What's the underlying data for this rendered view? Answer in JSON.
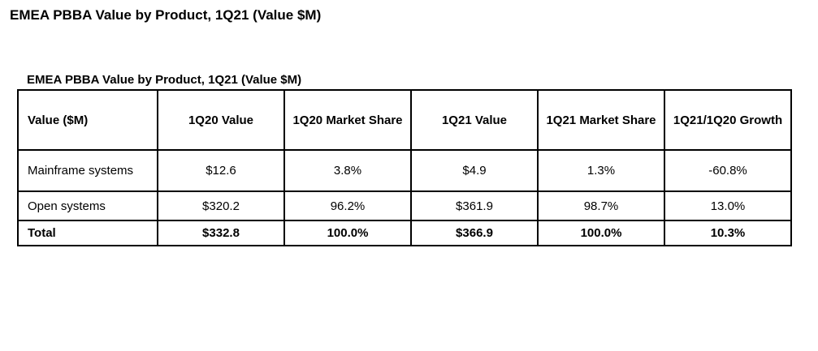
{
  "page_title": "EMEA PBBA Value by Product, 1Q21 (Value $M)",
  "table": {
    "caption": "EMEA PBBA Value by Product, 1Q21 (Value $M)",
    "headers": {
      "value": "Value ($M)",
      "q1_20_value": "1Q20 Value",
      "q1_20_share": "1Q20 Market Share",
      "q1_21_value": "1Q21 Value",
      "q1_21_share": "1Q21 Market Share",
      "growth": "1Q21/1Q20 Growth"
    },
    "rows": {
      "mainframe": {
        "label": "Mainframe systems",
        "q1_20_value": "$12.6",
        "q1_20_share": "3.8%",
        "q1_21_value": "$4.9",
        "q1_21_share": "1.3%",
        "growth": "-60.8%"
      },
      "open": {
        "label": "Open systems",
        "q1_20_value": "$320.2",
        "q1_20_share": "96.2%",
        "q1_21_value": "$361.9",
        "q1_21_share": "98.7%",
        "growth": "13.0%"
      },
      "total": {
        "label": "Total",
        "q1_20_value": "$332.8",
        "q1_20_share": "100.0%",
        "q1_21_value": "$366.9",
        "q1_21_share": "100.0%",
        "growth": "10.3%"
      }
    }
  }
}
